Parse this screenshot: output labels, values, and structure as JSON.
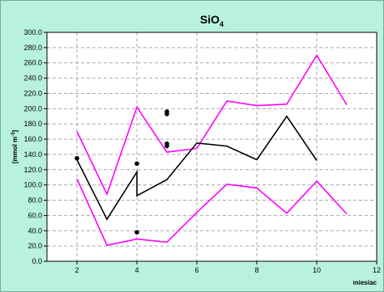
{
  "chart_data": {
    "type": "line",
    "title": "SiO",
    "title_subscript": "4",
    "xlabel": "miesiac",
    "ylabel": "[mmol m",
    "ylabel_superscript": "-3",
    "ylabel_close": "]",
    "xlim": [
      1,
      12
    ],
    "ylim": [
      0,
      300
    ],
    "x_ticks": [
      2,
      4,
      6,
      8,
      10,
      12
    ],
    "y_ticks": [
      0,
      20,
      40,
      60,
      80,
      100,
      120,
      140,
      160,
      180,
      200,
      220,
      240,
      260,
      280,
      300
    ],
    "y_tick_labels": [
      "0.0",
      "20.0",
      "40.0",
      "60.0",
      "80.0",
      "100.0",
      "120.0",
      "140.0",
      "160.0",
      "180.0",
      "200.0",
      "220.0",
      "240.0",
      "260.0",
      "280.0",
      "300.0"
    ],
    "grid": true,
    "series": [
      {
        "color": "#ff00ff",
        "style": "line",
        "x": [
          2,
          3,
          4,
          5,
          6,
          7,
          8,
          9,
          10,
          11
        ],
        "y": [
          170,
          88,
          202,
          143,
          148,
          210,
          204,
          206,
          270,
          205
        ]
      },
      {
        "color": "#000000",
        "style": "line",
        "x": [
          2,
          3,
          4,
          4,
          5,
          6,
          7,
          8,
          9,
          10
        ],
        "y": [
          133,
          55,
          117,
          86,
          107,
          155,
          151,
          133,
          190,
          132
        ]
      },
      {
        "color": "#ff00ff",
        "style": "line",
        "x": [
          2,
          3,
          4,
          5,
          6,
          7,
          8,
          9,
          10,
          11
        ],
        "y": [
          108,
          21,
          29,
          25,
          64,
          101,
          96,
          63,
          105,
          62
        ]
      },
      {
        "color": "#000000",
        "style": "scatter",
        "x": [
          2,
          4,
          4,
          5,
          5,
          5,
          5
        ],
        "y": [
          135,
          128,
          38,
          196,
          193,
          154,
          151
        ]
      }
    ]
  },
  "colors": {
    "background": "#b8f2dc",
    "plot_area": "#ffffff",
    "grid": "#a8a8a8",
    "magenta": "#ff00ff",
    "black": "#000000"
  }
}
